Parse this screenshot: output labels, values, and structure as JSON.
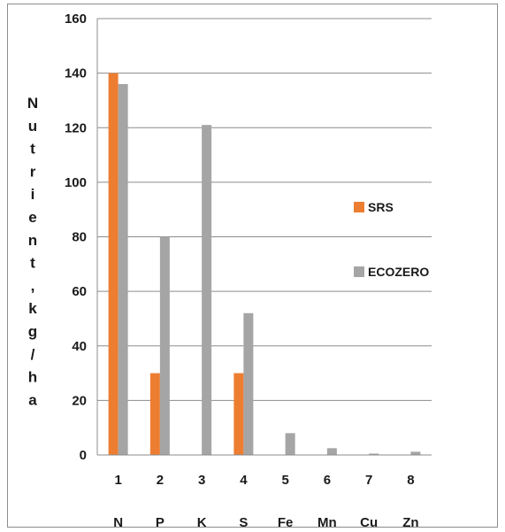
{
  "chart_data": {
    "type": "bar",
    "categories": [
      "1",
      "2",
      "3",
      "4",
      "5",
      "6",
      "7",
      "8"
    ],
    "sub_categories": [
      "N",
      "P",
      "K",
      "S",
      "Fe",
      "Mn",
      "Cu",
      "Zn"
    ],
    "series": [
      {
        "name": "SRS",
        "color": "#ed7d31",
        "values": [
          140,
          30,
          0,
          30,
          0,
          0,
          0,
          0
        ]
      },
      {
        "name": "ECOZERO",
        "color": "#a5a5a5",
        "values": [
          136,
          80,
          121,
          52,
          8,
          2.5,
          0.5,
          1.2
        ]
      }
    ],
    "ylabel": "Nutrient,kg/ha",
    "ylim": [
      0,
      160
    ],
    "yticks": [
      0,
      20,
      40,
      60,
      80,
      100,
      120,
      140,
      160
    ],
    "grid": true,
    "legend": "right"
  }
}
